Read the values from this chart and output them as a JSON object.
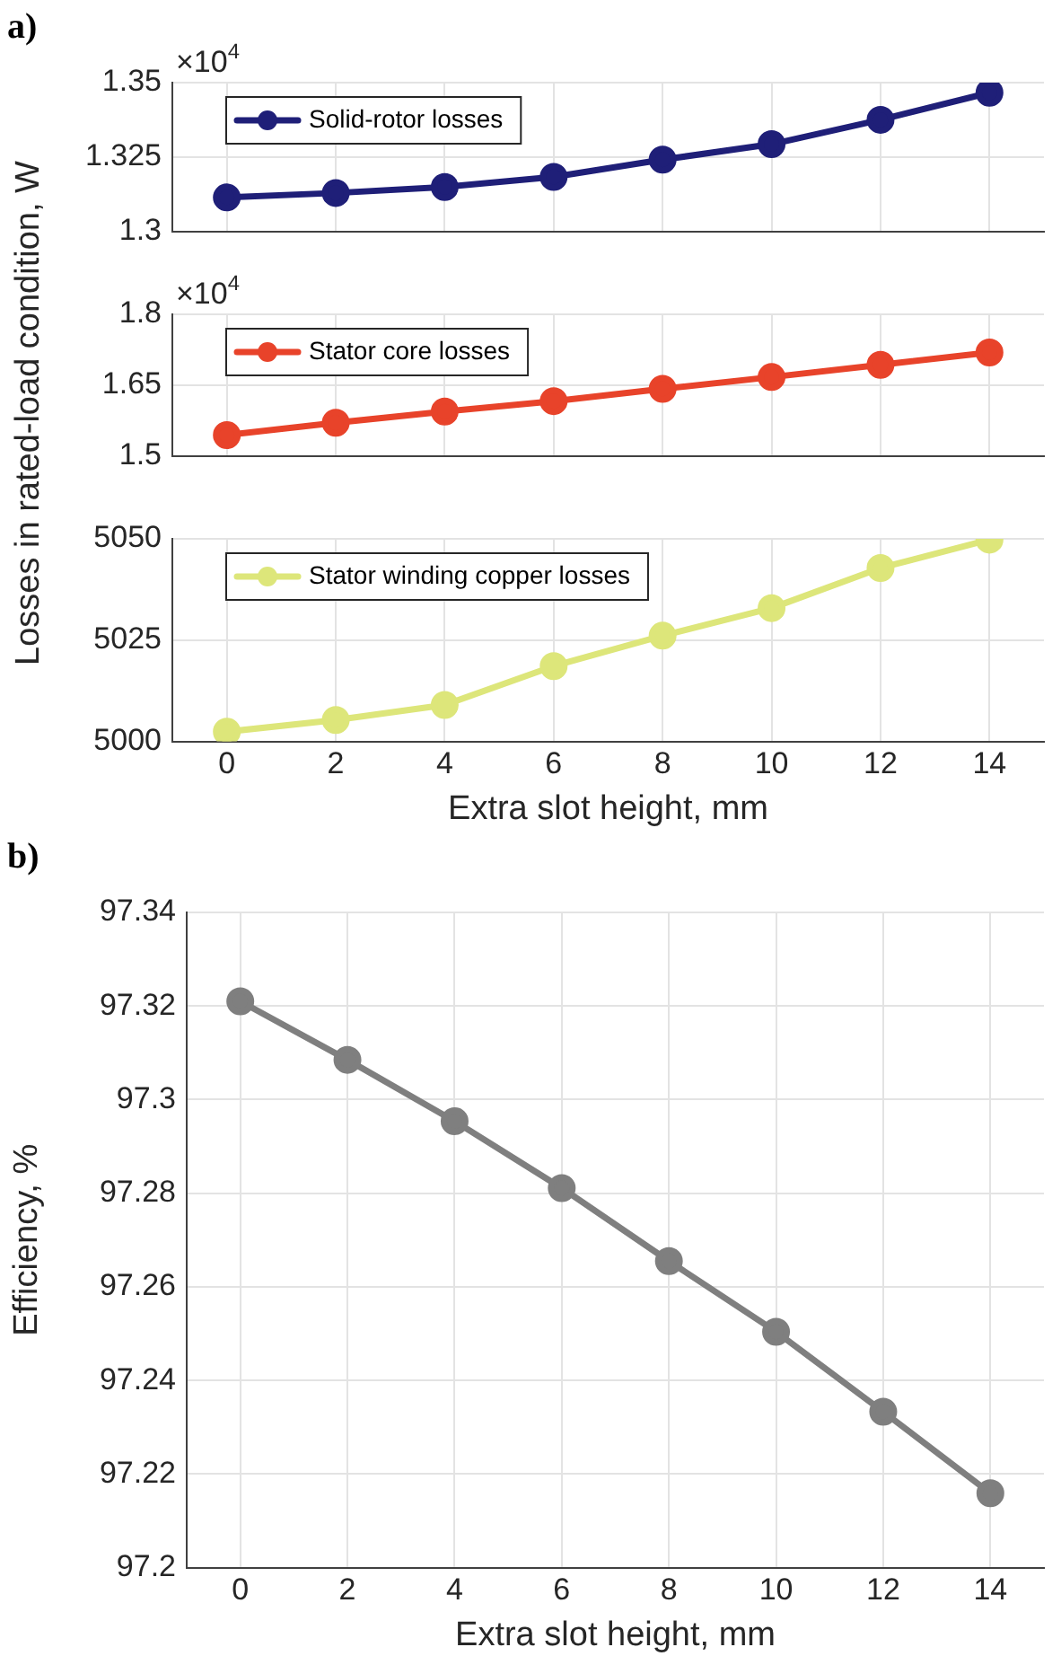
{
  "chart_data": [
    {
      "type": "line",
      "title": "a)",
      "annotations": [
        "×10$^{4}$"
      ],
      "x": [
        0,
        2,
        4,
        6,
        8,
        10,
        12,
        14
      ],
      "xlim": [
        -1,
        15
      ],
      "xticks": [
        0,
        2,
        4,
        6,
        8,
        10,
        12,
        14
      ],
      "ylim": [
        1.3,
        1.35
      ],
      "yticks": [
        1.3,
        1.325,
        1.35
      ],
      "tick_labels": "y",
      "grid": true,
      "legend": "top left",
      "marker": "circle",
      "series": [
        {
          "name": "Solid-rotor losses",
          "color": "#1f1f78",
          "values": [
            1.3114,
            1.3129,
            1.3149,
            1.3183,
            1.3241,
            1.3293,
            1.3375,
            1.3466
          ]
        }
      ]
    },
    {
      "type": "line",
      "ylabel": "Losses in rated-load condition, W",
      "annotations": [
        "×10$^{4}$"
      ],
      "x": [
        0,
        2,
        4,
        6,
        8,
        10,
        12,
        14
      ],
      "xlim": [
        -1,
        15
      ],
      "xticks": [
        0,
        2,
        4,
        6,
        8,
        10,
        12,
        14
      ],
      "ylim": [
        1.5,
        1.8
      ],
      "yticks": [
        1.5,
        1.65,
        1.8
      ],
      "tick_labels": "y",
      "grid": true,
      "legend": "top left",
      "marker": "circle",
      "series": [
        {
          "name": "Stator core losses",
          "color": "#e8432a",
          "values": [
            1.544,
            1.57,
            1.594,
            1.616,
            1.642,
            1.667,
            1.693,
            1.719
          ]
        }
      ]
    },
    {
      "type": "line",
      "xlabel": "Extra slot height, mm",
      "x": [
        0,
        2,
        4,
        6,
        8,
        10,
        12,
        14
      ],
      "xlim": [
        -1,
        15
      ],
      "xticks": [
        0,
        2,
        4,
        6,
        8,
        10,
        12,
        14
      ],
      "ylim": [
        5000,
        5050
      ],
      "yticks": [
        5000,
        5025,
        5050
      ],
      "grid": true,
      "legend": "top left",
      "marker": "circle",
      "series": [
        {
          "name": "Stator winding copper losses",
          "color": "#dde67a",
          "values": [
            5002.4,
            5005.3,
            5009,
            5018.6,
            5026.1,
            5032.9,
            5042.8,
            5049.8
          ]
        }
      ]
    },
    {
      "type": "line",
      "title": "b)",
      "xlabel": "Extra slot height, mm",
      "ylabel": "Efficiency, %",
      "x": [
        0,
        2,
        4,
        6,
        8,
        10,
        12,
        14
      ],
      "xlim": [
        -1,
        15
      ],
      "xticks": [
        0,
        2,
        4,
        6,
        8,
        10,
        12,
        14
      ],
      "ylim": [
        97.2,
        97.34
      ],
      "yticks": [
        97.2,
        97.22,
        97.24,
        97.26,
        97.28,
        97.3,
        97.32,
        97.34
      ],
      "grid": true,
      "marker": "circle",
      "series": [
        {
          "color": "#7f7f7f",
          "values": [
            97.321,
            97.3085,
            97.2954,
            97.2811,
            97.2655,
            97.2504,
            97.2333,
            97.2159
          ]
        }
      ]
    }
  ]
}
